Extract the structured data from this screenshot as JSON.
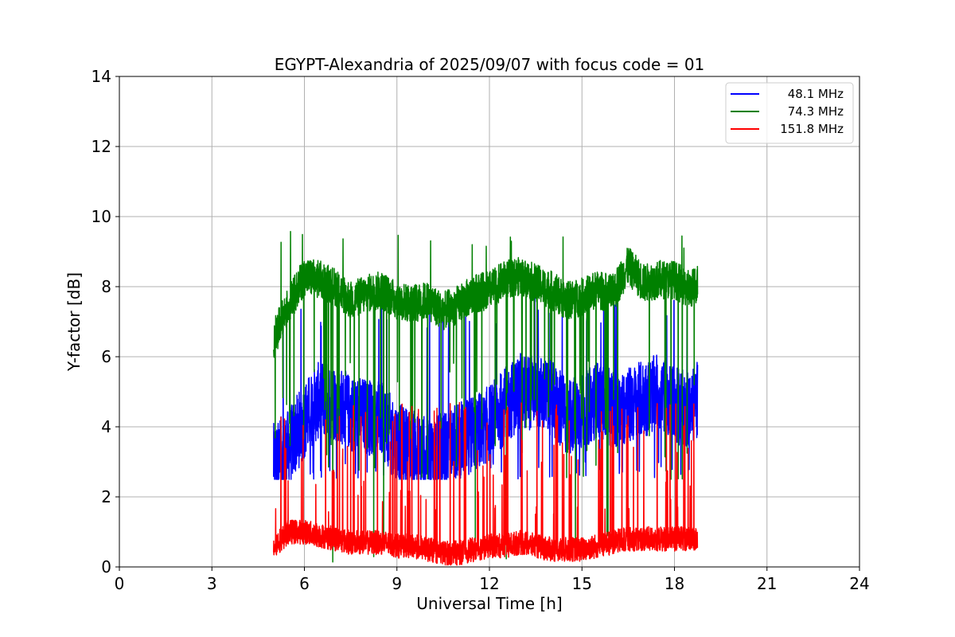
{
  "chart_data": {
    "type": "line",
    "title": "EGYPT-Alexandria of 2025/09/07 with focus code = 01",
    "xlabel": "Universal Time [h]",
    "ylabel": "Y-factor [dB]",
    "xlim": [
      0,
      24
    ],
    "ylim": [
      0,
      14
    ],
    "xticks": [
      0,
      3,
      6,
      9,
      12,
      15,
      18,
      21,
      24
    ],
    "yticks": [
      0,
      2,
      4,
      6,
      8,
      10,
      12,
      14
    ],
    "grid": true,
    "legend_position": "top-right",
    "series": [
      {
        "name": "48.1 MHz",
        "color": "#0000ff",
        "x": [
          5.0,
          5.5,
          6.0,
          6.5,
          7.0,
          7.5,
          8.0,
          8.5,
          9.0,
          9.5,
          10.0,
          10.5,
          11.0,
          11.5,
          12.0,
          12.5,
          13.0,
          13.5,
          14.0,
          14.5,
          15.0,
          15.5,
          16.0,
          16.5,
          17.0,
          17.5,
          18.0,
          18.5,
          18.75
        ],
        "y": [
          3.0,
          3.4,
          4.2,
          4.8,
          4.7,
          4.4,
          4.3,
          4.2,
          3.6,
          3.4,
          3.2,
          3.3,
          3.6,
          3.8,
          4.1,
          4.6,
          5.0,
          5.0,
          4.8,
          4.3,
          4.4,
          4.8,
          4.5,
          4.6,
          4.8,
          5.0,
          4.6,
          4.5,
          4.8
        ],
        "range": [
          2.5,
          7.8
        ]
      },
      {
        "name": "74.3 MHz",
        "color": "#008000",
        "x": [
          5.0,
          5.5,
          6.0,
          6.5,
          7.0,
          7.5,
          8.0,
          8.5,
          9.0,
          9.5,
          10.0,
          10.5,
          11.0,
          11.5,
          12.0,
          12.5,
          13.0,
          13.5,
          14.0,
          14.5,
          15.0,
          15.5,
          16.0,
          16.5,
          17.0,
          17.5,
          18.0,
          18.5,
          18.75
        ],
        "y": [
          6.5,
          7.5,
          8.3,
          8.2,
          8.0,
          7.6,
          7.8,
          7.9,
          7.6,
          7.5,
          7.6,
          7.3,
          7.5,
          7.8,
          7.9,
          8.2,
          8.3,
          8.1,
          7.9,
          7.6,
          7.7,
          7.9,
          7.8,
          8.6,
          8.1,
          8.2,
          8.2,
          7.9,
          8.1
        ],
        "range": [
          0,
          9.6
        ]
      },
      {
        "name": "151.8 MHz",
        "color": "#ff0000",
        "x": [
          5.0,
          5.5,
          6.0,
          6.5,
          7.0,
          7.5,
          8.0,
          8.5,
          9.0,
          9.5,
          10.0,
          10.5,
          11.0,
          11.5,
          12.0,
          12.5,
          13.0,
          13.5,
          14.0,
          14.5,
          15.0,
          15.5,
          16.0,
          16.5,
          17.0,
          17.5,
          18.0,
          18.5,
          18.75
        ],
        "y": [
          0.6,
          1.0,
          1.0,
          0.9,
          0.8,
          0.7,
          0.7,
          0.7,
          0.6,
          0.6,
          0.5,
          0.4,
          0.4,
          0.5,
          0.6,
          0.6,
          0.7,
          0.6,
          0.5,
          0.5,
          0.5,
          0.6,
          0.7,
          0.8,
          0.8,
          0.8,
          0.8,
          0.8,
          0.8
        ],
        "range": [
          0,
          4.7
        ]
      }
    ]
  }
}
